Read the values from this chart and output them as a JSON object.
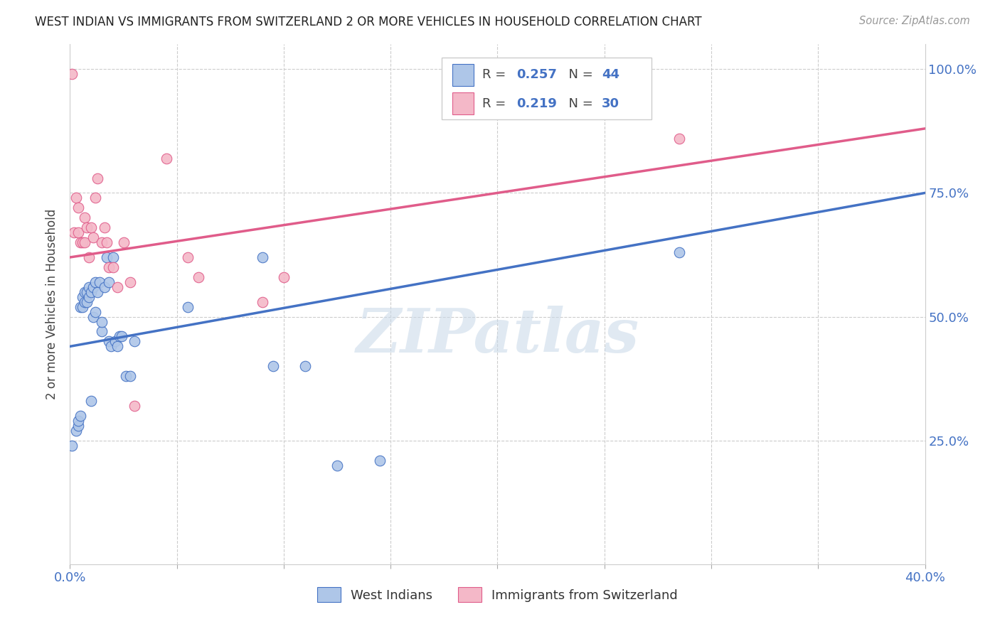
{
  "title": "WEST INDIAN VS IMMIGRANTS FROM SWITZERLAND 2 OR MORE VEHICLES IN HOUSEHOLD CORRELATION CHART",
  "source": "Source: ZipAtlas.com",
  "ylabel": "2 or more Vehicles in Household",
  "xlim": [
    0.0,
    0.4
  ],
  "ylim": [
    0.0,
    1.05
  ],
  "blue_color": "#aec6e8",
  "pink_color": "#f4b8c8",
  "blue_line_color": "#4472c4",
  "pink_line_color": "#e05c8a",
  "r_blue": 0.257,
  "n_blue": 44,
  "r_pink": 0.219,
  "n_pink": 30,
  "blue_scatter_x": [
    0.001,
    0.003,
    0.004,
    0.004,
    0.005,
    0.005,
    0.006,
    0.006,
    0.007,
    0.007,
    0.008,
    0.008,
    0.009,
    0.009,
    0.01,
    0.01,
    0.011,
    0.011,
    0.012,
    0.012,
    0.013,
    0.014,
    0.015,
    0.015,
    0.016,
    0.017,
    0.018,
    0.018,
    0.019,
    0.02,
    0.021,
    0.022,
    0.023,
    0.024,
    0.026,
    0.028,
    0.03,
    0.055,
    0.09,
    0.095,
    0.11,
    0.125,
    0.145,
    0.285
  ],
  "blue_scatter_y": [
    0.24,
    0.27,
    0.28,
    0.29,
    0.3,
    0.52,
    0.52,
    0.54,
    0.53,
    0.55,
    0.53,
    0.55,
    0.54,
    0.56,
    0.33,
    0.55,
    0.5,
    0.56,
    0.51,
    0.57,
    0.55,
    0.57,
    0.47,
    0.49,
    0.56,
    0.62,
    0.45,
    0.57,
    0.44,
    0.62,
    0.45,
    0.44,
    0.46,
    0.46,
    0.38,
    0.38,
    0.45,
    0.52,
    0.62,
    0.4,
    0.4,
    0.2,
    0.21,
    0.63
  ],
  "pink_scatter_x": [
    0.001,
    0.002,
    0.003,
    0.004,
    0.004,
    0.005,
    0.006,
    0.007,
    0.007,
    0.008,
    0.009,
    0.01,
    0.011,
    0.012,
    0.013,
    0.015,
    0.016,
    0.017,
    0.018,
    0.02,
    0.022,
    0.025,
    0.028,
    0.03,
    0.045,
    0.055,
    0.06,
    0.09,
    0.1,
    0.285
  ],
  "pink_scatter_y": [
    0.99,
    0.67,
    0.74,
    0.72,
    0.67,
    0.65,
    0.65,
    0.65,
    0.7,
    0.68,
    0.62,
    0.68,
    0.66,
    0.74,
    0.78,
    0.65,
    0.68,
    0.65,
    0.6,
    0.6,
    0.56,
    0.65,
    0.57,
    0.32,
    0.82,
    0.62,
    0.58,
    0.53,
    0.58,
    0.86
  ],
  "watermark": "ZIPatlas",
  "legend_label_blue": "West Indians",
  "legend_label_pink": "Immigrants from Switzerland",
  "background_color": "#ffffff",
  "grid_color": "#cccccc"
}
